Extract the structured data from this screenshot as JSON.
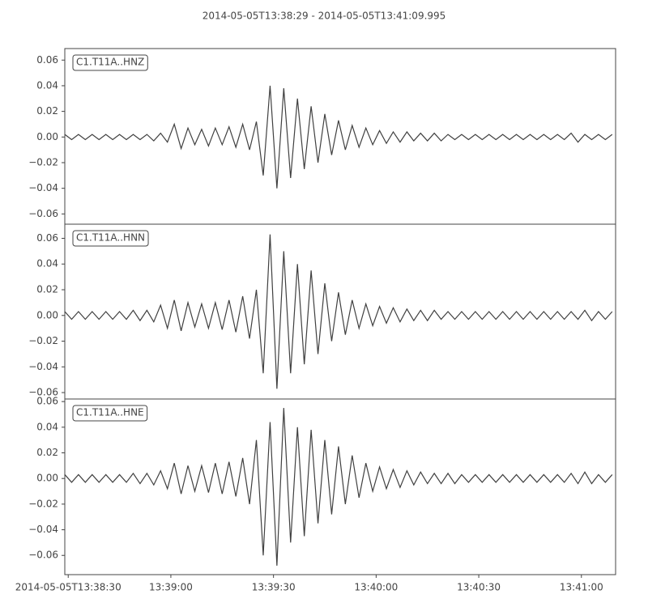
{
  "chart_data": [
    {
      "type": "line",
      "title": "2014-05-05T13:38:29  -  2014-05-05T13:41:09.995",
      "x": [
        0,
        2,
        4,
        6,
        8,
        10,
        12,
        14,
        16,
        18,
        20,
        22,
        24,
        26,
        28,
        30,
        32,
        34,
        36,
        38,
        40,
        42,
        44,
        46,
        48,
        50,
        52,
        54,
        56,
        58,
        60,
        62,
        64,
        66,
        68,
        70,
        72,
        74,
        76,
        78,
        80,
        82,
        84,
        86,
        88,
        90,
        92,
        94,
        96,
        98,
        100,
        102,
        104,
        106,
        108,
        110,
        112,
        114,
        116,
        118,
        120,
        122,
        124,
        126,
        128,
        130,
        132,
        134,
        136,
        138,
        140,
        142,
        144,
        146,
        148,
        150,
        152,
        154,
        156,
        158,
        160
      ],
      "xlim": [
        0,
        160.995
      ],
      "ylim": [
        -0.068,
        0.069
      ],
      "yticks": [
        0.06,
        0.04,
        0.02,
        {
          "value": 0,
          "label": "0.00"
        },
        {
          "value": -0.02,
          "label": "−0.02"
        },
        {
          "value": -0.04,
          "label": "−0.04"
        },
        {
          "value": -0.06,
          "label": "−0.06"
        }
      ],
      "series": [
        {
          "name": "C1.T11A..HNZ",
          "color": "#404040",
          "values": [
            0.002,
            -0.002,
            0.002,
            -0.002,
            0.002,
            -0.002,
            0.002,
            -0.002,
            0.002,
            -0.002,
            0.002,
            -0.002,
            0.002,
            -0.003,
            0.003,
            -0.004,
            0.01,
            -0.009,
            0.007,
            -0.006,
            0.006,
            -0.007,
            0.007,
            -0.006,
            0.008,
            -0.008,
            0.01,
            -0.01,
            0.012,
            -0.03,
            0.04,
            -0.04,
            0.038,
            -0.032,
            0.03,
            -0.025,
            0.024,
            -0.02,
            0.018,
            -0.014,
            0.013,
            -0.01,
            0.009,
            -0.008,
            0.007,
            -0.006,
            0.005,
            -0.005,
            0.004,
            -0.004,
            0.004,
            -0.003,
            0.003,
            -0.003,
            0.003,
            -0.003,
            0.002,
            -0.002,
            0.002,
            -0.002,
            0.002,
            -0.002,
            0.002,
            -0.002,
            0.002,
            -0.002,
            0.002,
            -0.002,
            0.002,
            -0.002,
            0.002,
            -0.002,
            0.002,
            -0.002,
            0.003,
            -0.004,
            0.002,
            -0.002,
            0.002,
            -0.002,
            0.002
          ]
        }
      ]
    },
    {
      "type": "line",
      "x": [
        0,
        2,
        4,
        6,
        8,
        10,
        12,
        14,
        16,
        18,
        20,
        22,
        24,
        26,
        28,
        30,
        32,
        34,
        36,
        38,
        40,
        42,
        44,
        46,
        48,
        50,
        52,
        54,
        56,
        58,
        60,
        62,
        64,
        66,
        68,
        70,
        72,
        74,
        76,
        78,
        80,
        82,
        84,
        86,
        88,
        90,
        92,
        94,
        96,
        98,
        100,
        102,
        104,
        106,
        108,
        110,
        112,
        114,
        116,
        118,
        120,
        122,
        124,
        126,
        128,
        130,
        132,
        134,
        136,
        138,
        140,
        142,
        144,
        146,
        148,
        150,
        152,
        154,
        156,
        158,
        160
      ],
      "xlim": [
        0,
        160.995
      ],
      "ylim": [
        -0.065,
        0.071
      ],
      "yticks": [
        0.06,
        0.04,
        0.02,
        {
          "value": 0,
          "label": "0.00"
        },
        {
          "value": -0.02,
          "label": "−0.02"
        },
        {
          "value": -0.04,
          "label": "−0.04"
        },
        {
          "value": -0.06,
          "label": "−0.06"
        }
      ],
      "series": [
        {
          "name": "C1.T11A..HNN",
          "color": "#404040",
          "values": [
            0.003,
            -0.003,
            0.003,
            -0.003,
            0.003,
            -0.003,
            0.003,
            -0.003,
            0.003,
            -0.003,
            0.004,
            -0.004,
            0.004,
            -0.005,
            0.008,
            -0.01,
            0.012,
            -0.012,
            0.01,
            -0.009,
            0.009,
            -0.01,
            0.01,
            -0.011,
            0.012,
            -0.013,
            0.015,
            -0.018,
            0.02,
            -0.045,
            0.063,
            -0.057,
            0.05,
            -0.045,
            0.04,
            -0.038,
            0.035,
            -0.03,
            0.025,
            -0.02,
            0.018,
            -0.015,
            0.012,
            -0.01,
            0.009,
            -0.008,
            0.007,
            -0.006,
            0.006,
            -0.005,
            0.005,
            -0.004,
            0.004,
            -0.004,
            0.004,
            -0.003,
            0.003,
            -0.003,
            0.003,
            -0.003,
            0.003,
            -0.003,
            0.003,
            -0.003,
            0.003,
            -0.003,
            0.003,
            -0.003,
            0.003,
            -0.003,
            0.003,
            -0.003,
            0.003,
            -0.003,
            0.003,
            -0.003,
            0.004,
            -0.004,
            0.003,
            -0.003,
            0.003
          ]
        }
      ]
    },
    {
      "type": "line",
      "x": [
        0,
        2,
        4,
        6,
        8,
        10,
        12,
        14,
        16,
        18,
        20,
        22,
        24,
        26,
        28,
        30,
        32,
        34,
        36,
        38,
        40,
        42,
        44,
        46,
        48,
        50,
        52,
        54,
        56,
        58,
        60,
        62,
        64,
        66,
        68,
        70,
        72,
        74,
        76,
        78,
        80,
        82,
        84,
        86,
        88,
        90,
        92,
        94,
        96,
        98,
        100,
        102,
        104,
        106,
        108,
        110,
        112,
        114,
        116,
        118,
        120,
        122,
        124,
        126,
        128,
        130,
        132,
        134,
        136,
        138,
        140,
        142,
        144,
        146,
        148,
        150,
        152,
        154,
        156,
        158,
        160
      ],
      "xlim": [
        0,
        160.995
      ],
      "xticks": [
        {
          "value": 1,
          "label": "2014-05-05T13:38:30"
        },
        {
          "value": 31,
          "label": "13:39:00"
        },
        {
          "value": 61,
          "label": "13:39:30"
        },
        {
          "value": 91,
          "label": "13:40:00"
        },
        {
          "value": 121,
          "label": "13:40:30"
        },
        {
          "value": 151,
          "label": "13:41:00"
        }
      ],
      "ylim": [
        -0.075,
        0.062
      ],
      "yticks": [
        0.06,
        0.04,
        0.02,
        {
          "value": 0,
          "label": "0.00"
        },
        {
          "value": -0.02,
          "label": "−0.02"
        },
        {
          "value": -0.04,
          "label": "−0.04"
        },
        {
          "value": -0.06,
          "label": "−0.06"
        }
      ],
      "series": [
        {
          "name": "C1.T11A..HNE",
          "color": "#404040",
          "values": [
            0.003,
            -0.003,
            0.003,
            -0.003,
            0.003,
            -0.003,
            0.003,
            -0.003,
            0.003,
            -0.003,
            0.004,
            -0.004,
            0.004,
            -0.005,
            0.006,
            -0.008,
            0.012,
            -0.012,
            0.01,
            -0.01,
            0.01,
            -0.011,
            0.012,
            -0.012,
            0.013,
            -0.014,
            0.016,
            -0.02,
            0.03,
            -0.06,
            0.044,
            -0.068,
            0.055,
            -0.05,
            0.04,
            -0.045,
            0.038,
            -0.035,
            0.03,
            -0.028,
            0.025,
            -0.02,
            0.018,
            -0.015,
            0.012,
            -0.01,
            0.009,
            -0.008,
            0.007,
            -0.007,
            0.006,
            -0.005,
            0.005,
            -0.004,
            0.004,
            -0.004,
            0.004,
            -0.004,
            0.003,
            -0.003,
            0.003,
            -0.003,
            0.003,
            -0.003,
            0.003,
            -0.003,
            0.003,
            -0.003,
            0.003,
            -0.003,
            0.003,
            -0.003,
            0.003,
            -0.003,
            0.004,
            -0.004,
            0.005,
            -0.004,
            0.003,
            -0.003,
            0.003
          ]
        }
      ]
    }
  ]
}
